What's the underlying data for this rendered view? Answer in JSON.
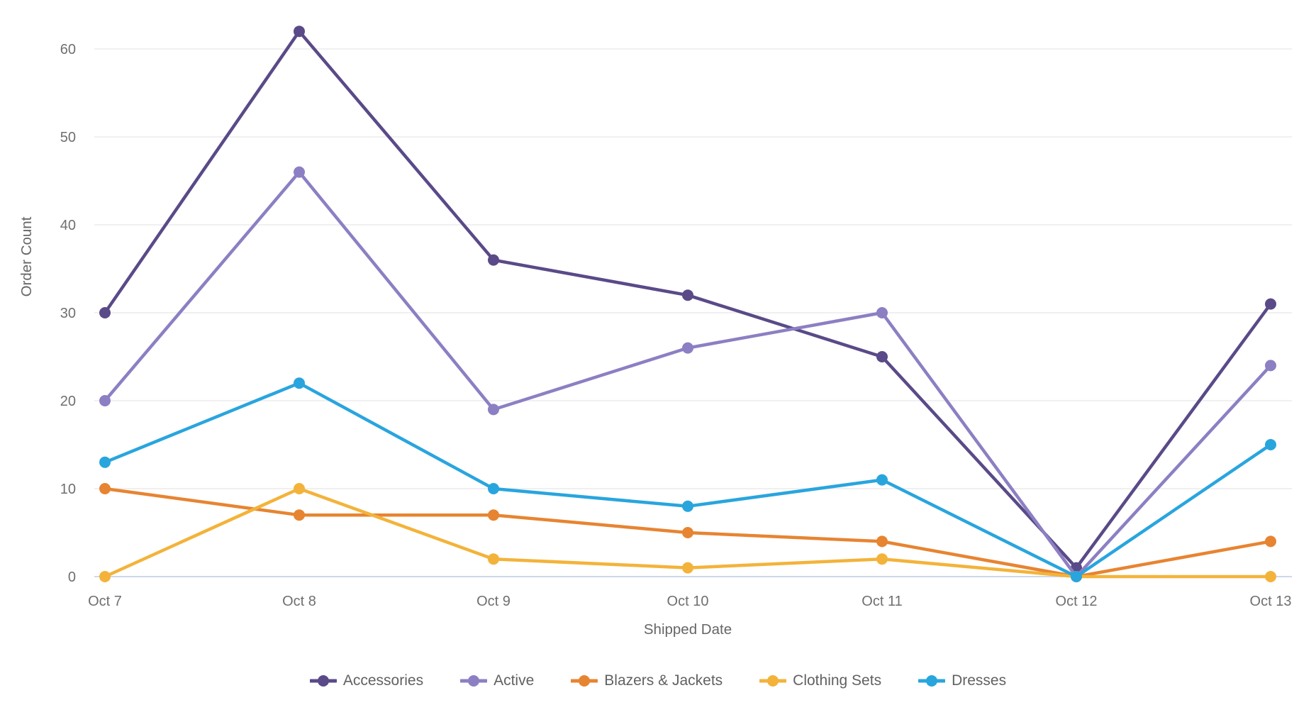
{
  "chart_data": {
    "type": "line",
    "title": "",
    "xlabel": "Shipped Date",
    "ylabel": "Order Count",
    "categories": [
      "Oct 7",
      "Oct 8",
      "Oct 9",
      "Oct 10",
      "Oct 11",
      "Oct 12",
      "Oct 13"
    ],
    "series": [
      {
        "name": "Accessories",
        "color": "#5a4a88",
        "values": [
          30,
          62,
          36,
          32,
          25,
          1,
          31
        ]
      },
      {
        "name": "Active",
        "color": "#8d7fc3",
        "values": [
          20,
          46,
          19,
          26,
          30,
          0,
          24
        ]
      },
      {
        "name": "Blazers & Jackets",
        "color": "#e78431",
        "values": [
          10,
          7,
          7,
          5,
          4,
          0,
          4
        ]
      },
      {
        "name": "Clothing Sets",
        "color": "#f3b33a",
        "values": [
          0,
          10,
          2,
          1,
          2,
          0,
          0
        ]
      },
      {
        "name": "Dresses",
        "color": "#29a5de",
        "values": [
          13,
          22,
          10,
          8,
          11,
          0,
          15
        ]
      }
    ],
    "yticks": [
      0,
      10,
      20,
      30,
      40,
      50,
      60
    ],
    "ylim": [
      0,
      65
    ],
    "grid": true,
    "legend_position": "bottom",
    "colors": {
      "grid_line": "#e7e7e7",
      "zero_line": "#ccd8ec",
      "tick_text": "#6f6f6f",
      "axis_title_text": "#666666",
      "legend_text": "#616161"
    }
  }
}
